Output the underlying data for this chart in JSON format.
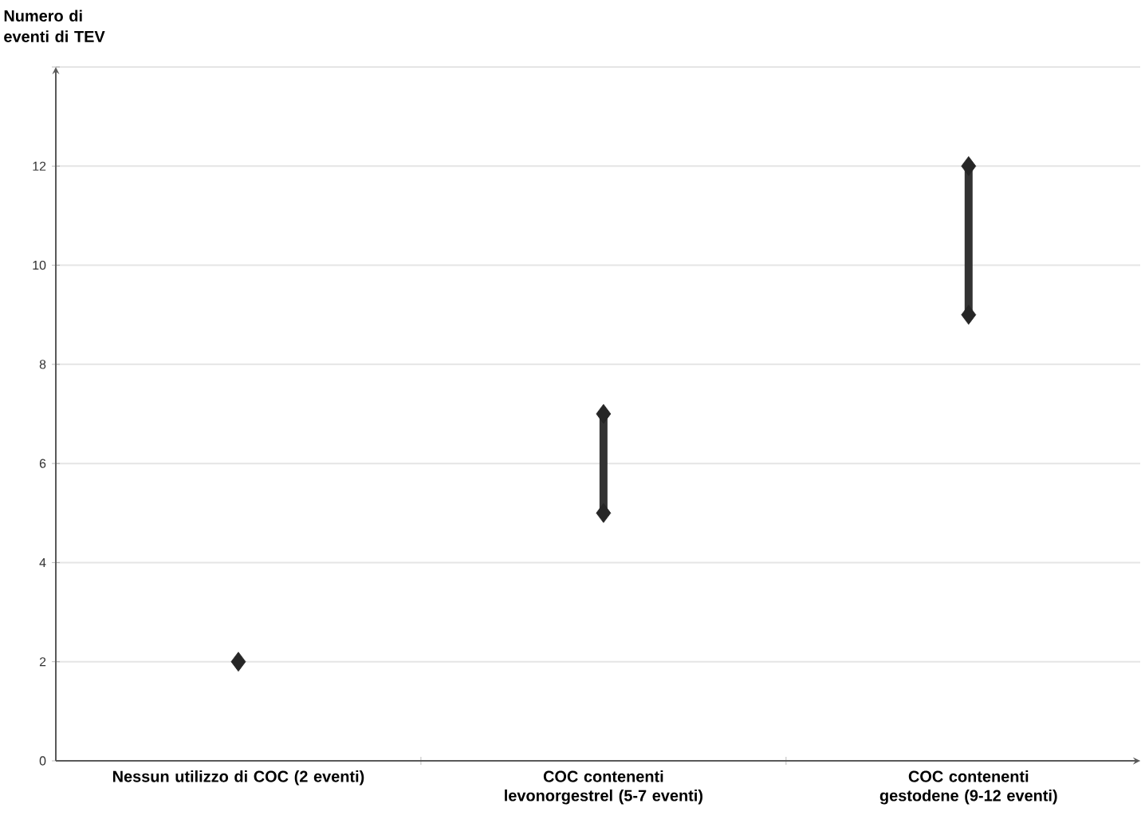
{
  "chart_data": {
    "type": "scatter",
    "ylabel": "Numero di eventi di TEV",
    "categories": [
      "Nessun utilizzo di COC (2 eventi)",
      "COC contenenti levonorgestrel (5-7 eventi)",
      "COC contenenti gestodene (9-12 eventi)"
    ],
    "series": [
      {
        "type": "bar",
        "base": [
          null,
          5,
          9
        ],
        "values": [
          null,
          2,
          3
        ],
        "color": "#333333"
      },
      {
        "values": [
          2,
          5,
          9
        ],
        "color": "#262626"
      },
      {
        "values": [
          null,
          7,
          12
        ],
        "color": "#262626"
      }
    ],
    "ylim": [
      0,
      14
    ],
    "yticks": [
      0,
      2,
      4,
      6,
      8,
      10,
      12,
      {
        "value": 14,
        "label": null
      }
    ],
    "grid": "y",
    "marker": "diamond"
  }
}
